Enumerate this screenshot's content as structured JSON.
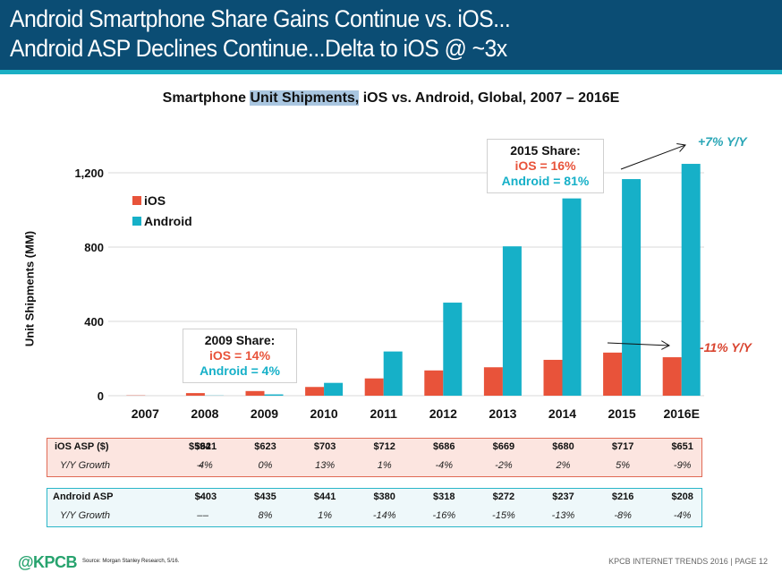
{
  "header": {
    "title_line1": "Android Smartphone Share Gains Continue vs. iOS...",
    "title_line2": "Android ASP Declines Continue...Delta to iOS @ ~3x",
    "bg_color": "#0b4d74",
    "stripe_color": "#1aafc4"
  },
  "chart_title": {
    "prefix": "Smartphone ",
    "highlight": "Unit Shipments,",
    "suffix": " iOS vs. Android, Global, 2007 – 2016E"
  },
  "chart_data": {
    "type": "bar",
    "title": "Smartphone Unit Shipments, iOS vs. Android, Global, 2007 – 2016E",
    "xlabel": "",
    "ylabel": "Unit Shipments (MM)",
    "ylim": [
      0,
      1200
    ],
    "yticks": [
      0,
      400,
      800,
      1200
    ],
    "ytick_labels": [
      "0",
      "400",
      "800",
      "1,200"
    ],
    "grid": true,
    "legend_position": "top-left",
    "categories": [
      "2007",
      "2008",
      "2009",
      "2010",
      "2011",
      "2012",
      "2013",
      "2014",
      "2015",
      "2016E"
    ],
    "series": [
      {
        "name": "iOS",
        "color": "#e8533a",
        "values": [
          4,
          14,
          25,
          47,
          93,
          136,
          153,
          193,
          232,
          207
        ]
      },
      {
        "name": "Android",
        "color": "#16b0c8",
        "values": [
          0,
          1,
          7,
          69,
          238,
          501,
          804,
          1062,
          1166,
          1248
        ]
      }
    ],
    "annotations": [
      {
        "title": "2009 Share:",
        "ios": "iOS = 14%",
        "android": "Android = 4%"
      },
      {
        "title": "2015 Share:",
        "ios": "iOS = 16%",
        "android": "Android = 81%"
      },
      {
        "text": "+7% Y/Y",
        "series": "Android"
      },
      {
        "text": "-11% Y/Y",
        "series": "iOS"
      }
    ]
  },
  "legend": {
    "ios": "iOS",
    "android": "Android"
  },
  "callouts": {
    "share_2009": {
      "title": "2009 Share:",
      "ios": "iOS = 14%",
      "android": "Android = 4%"
    },
    "share_2015": {
      "title": "2015 Share:",
      "ios": "iOS = 16%",
      "android": "Android = 81%"
    },
    "android_yoy": "+7% Y/Y",
    "ios_yoy": "-11% Y/Y"
  },
  "asp_tables": {
    "ios": {
      "label": "iOS ASP ($)",
      "values": [
        "$594",
        "$621",
        "$623",
        "$703",
        "$712",
        "$686",
        "$669",
        "$680",
        "$717",
        "$651"
      ],
      "growth_label": "Y/Y Growth",
      "growth": [
        "–",
        "4%",
        "0%",
        "13%",
        "1%",
        "-4%",
        "-2%",
        "2%",
        "5%",
        "-9%"
      ]
    },
    "android": {
      "label": "Android ASP",
      "values": [
        "–",
        "$403",
        "$435",
        "$441",
        "$380",
        "$318",
        "$272",
        "$237",
        "$216",
        "$208"
      ],
      "growth_label": "Y/Y Growth",
      "growth": [
        "–",
        "–",
        "8%",
        "1%",
        "-14%",
        "-16%",
        "-15%",
        "-13%",
        "-8%",
        "-4%"
      ]
    }
  },
  "footer": {
    "logo": "@KPCB",
    "source": "Source: Morgan Stanley Research, 5/16.",
    "right": "KPCB INTERNET TRENDS 2016  |  PAGE 12"
  }
}
